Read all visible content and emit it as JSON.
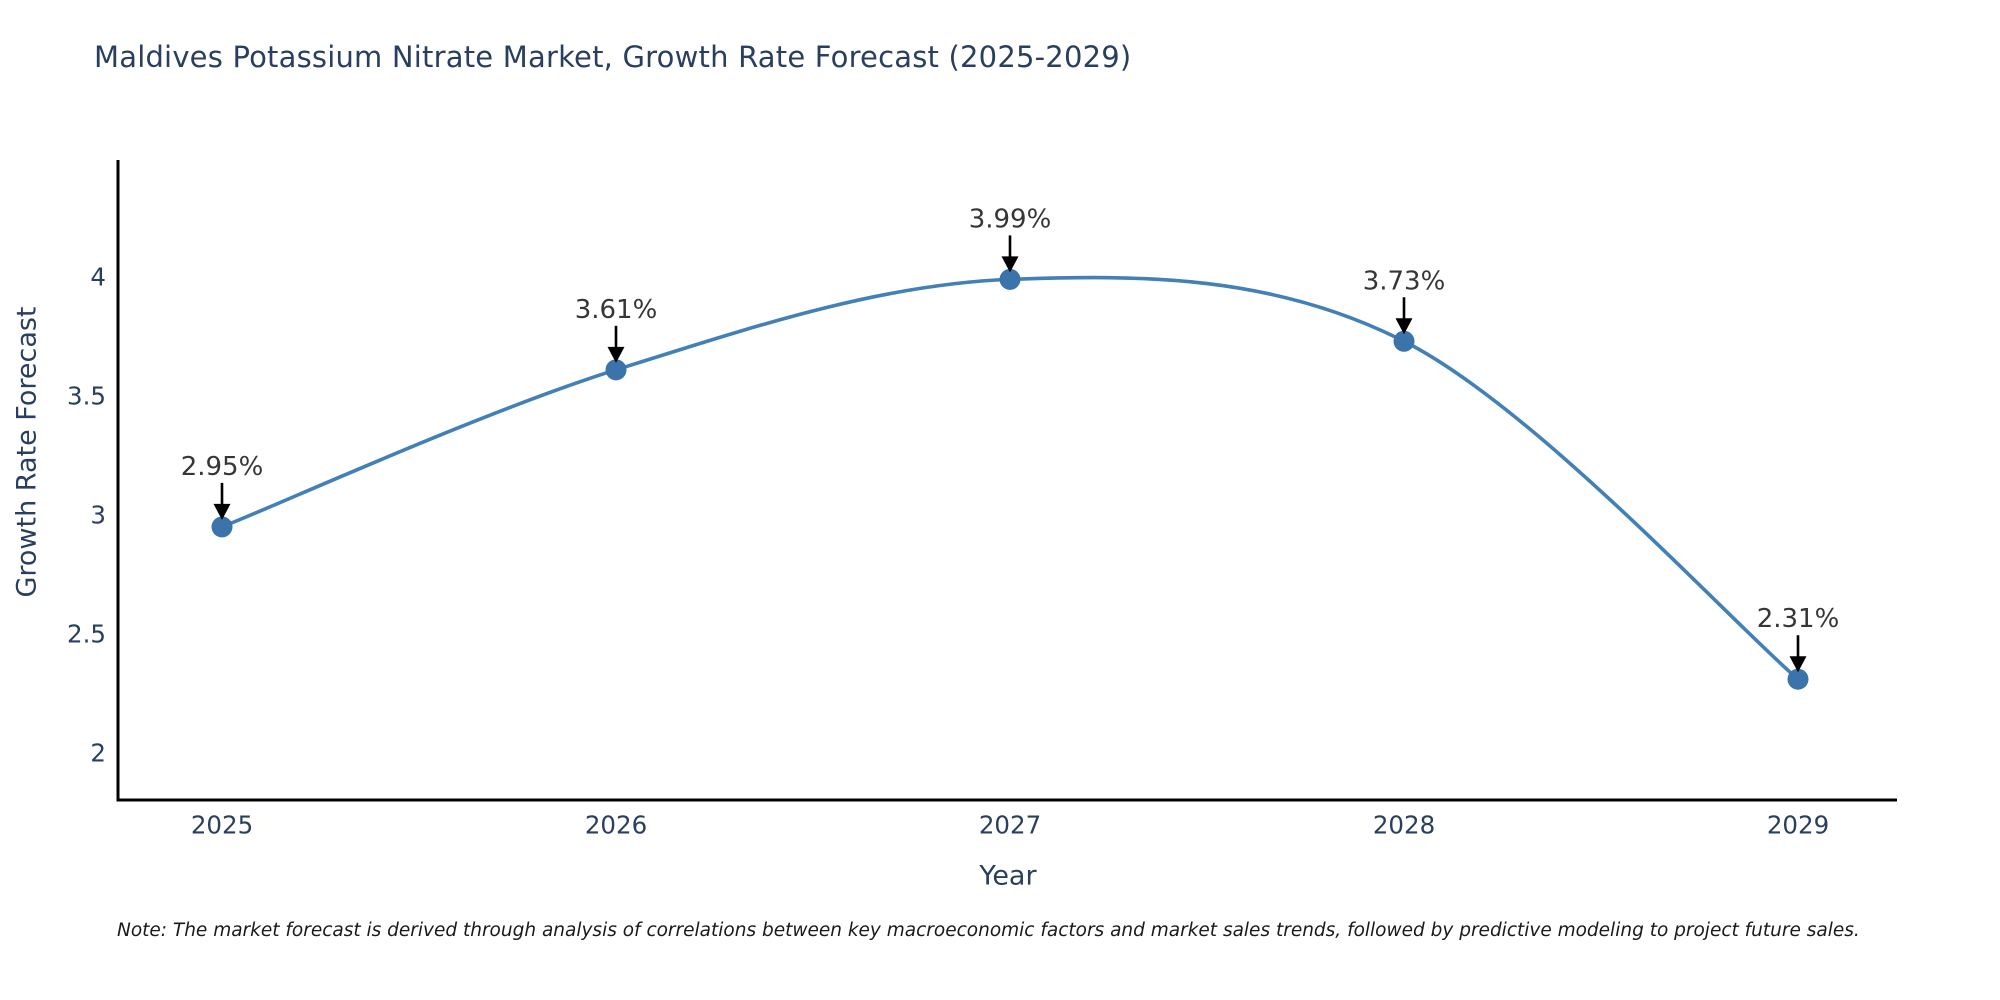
{
  "chart_data": {
    "type": "line",
    "title": "Maldives Potassium Nitrate Market, Growth Rate Forecast (2025-2029)",
    "xlabel": "Year",
    "ylabel": "Growth Rate Forecast",
    "x": [
      2025,
      2026,
      2027,
      2028,
      2029
    ],
    "series": [
      {
        "name": "Growth Rate Forecast",
        "values": [
          2.95,
          3.61,
          3.99,
          3.73,
          2.31
        ]
      }
    ],
    "point_labels": [
      "2.95%",
      "3.61%",
      "3.99%",
      "3.73%",
      "2.31%"
    ],
    "xticks": [
      "2025",
      "2026",
      "2027",
      "2028",
      "2029"
    ],
    "yticks": [
      2,
      2.5,
      3,
      3.5,
      4
    ],
    "xlim": [
      2024.74,
      2029.26
    ],
    "ylim": [
      1.8,
      4.49
    ],
    "grid": false,
    "legend_position": "none",
    "smooth": true,
    "annotations_have_arrows": true
  },
  "note": "Note: The market forecast is derived through analysis of correlations between key macroeconomic factors and market sales trends, followed by predictive modeling to project future sales.",
  "colors": {
    "line": "#4280b6",
    "marker": "#3a74ab",
    "arrow": "#000000",
    "axis_line": "#000000",
    "title_text": "#2a3f5f",
    "axis_text": "#2a3f5f",
    "annotation_text": "#363636",
    "note_text": "#1a1a1a",
    "background": "#ffffff"
  }
}
